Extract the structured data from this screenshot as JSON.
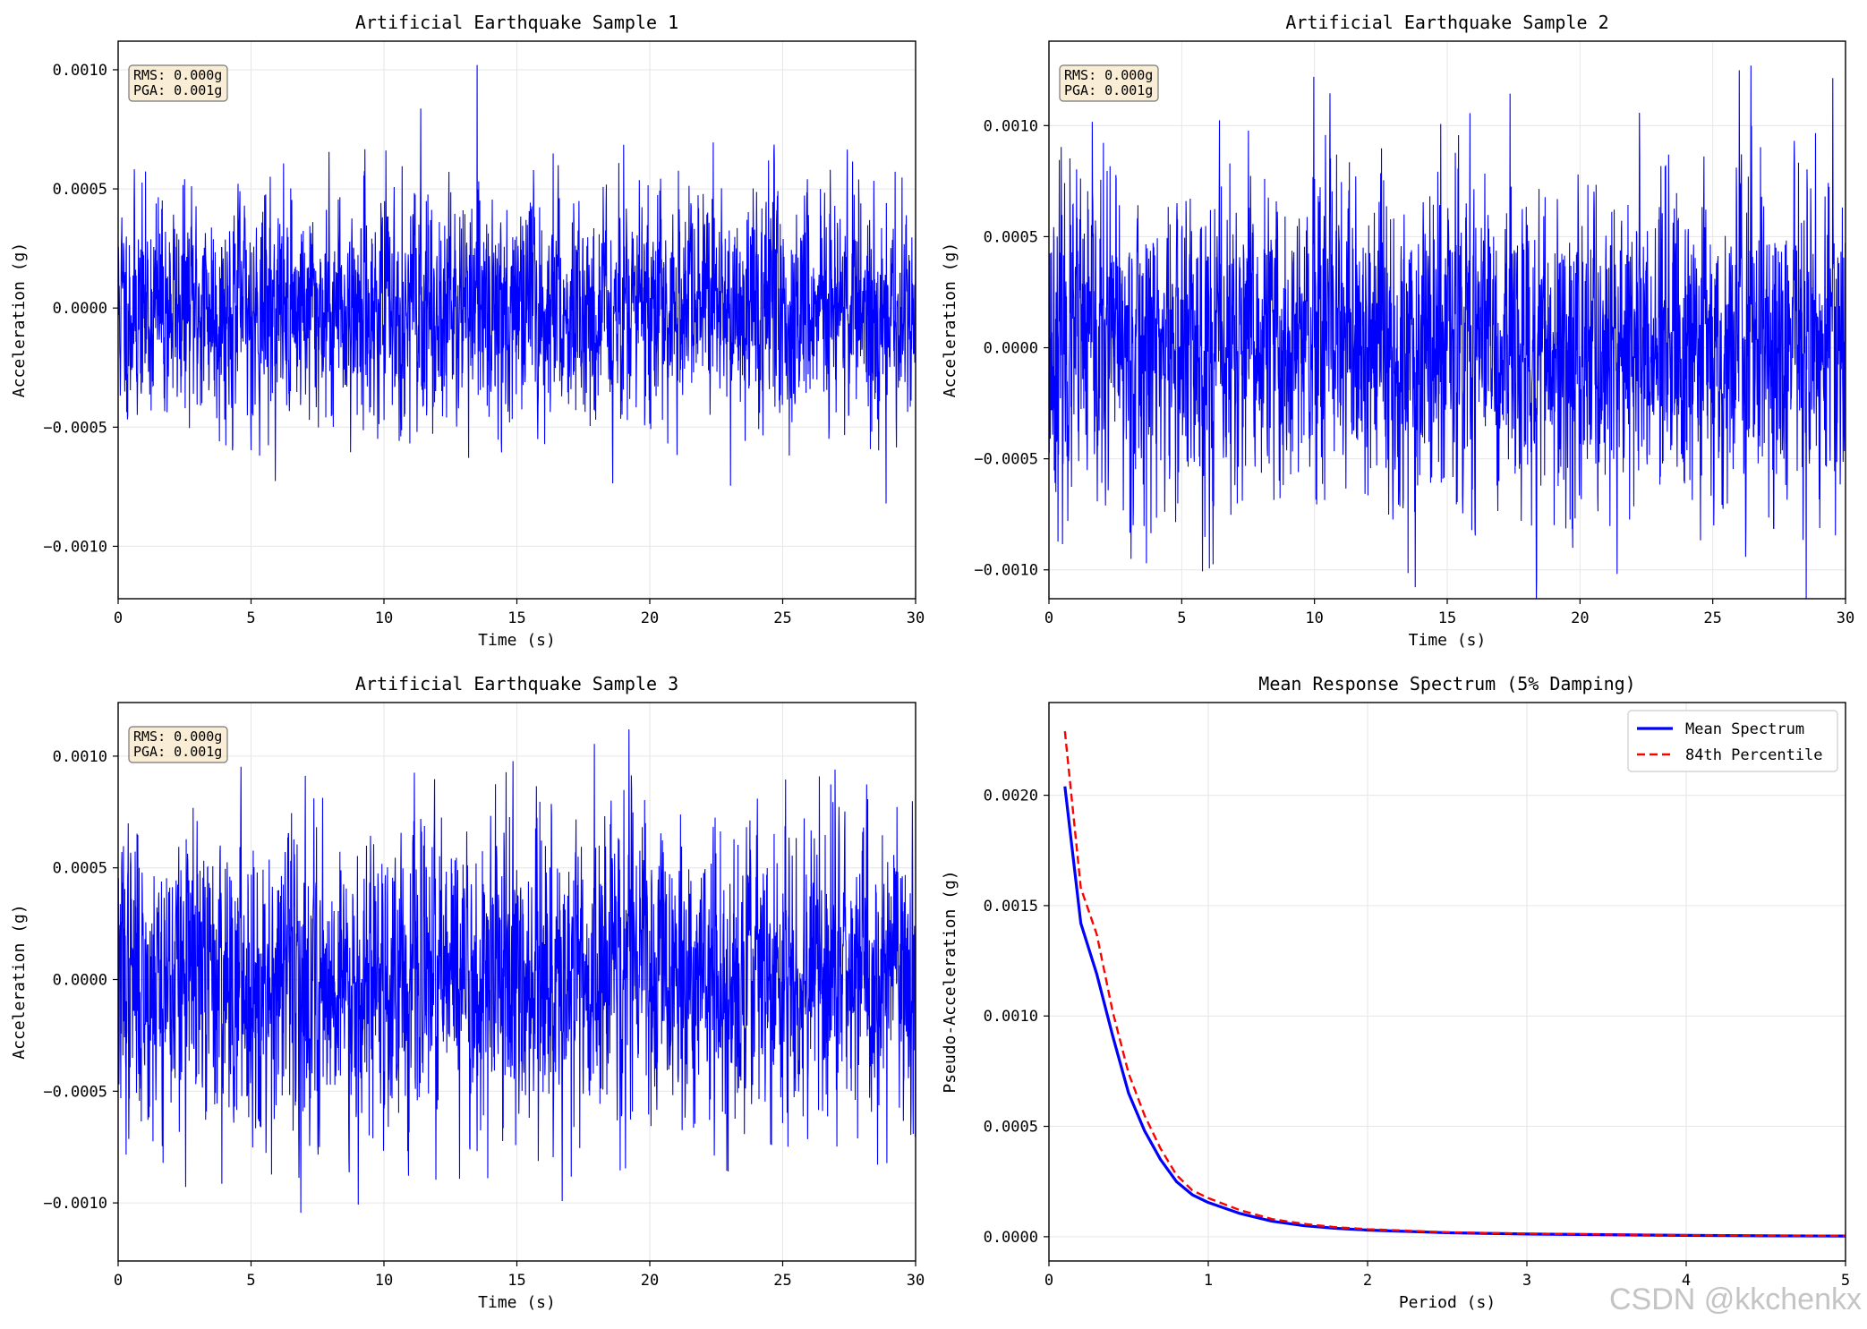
{
  "watermark": "CSDN @kkchenkx",
  "colors": {
    "signal": "#0000ff",
    "mean": "#0000ff",
    "p84": "#ff0000",
    "grid": "#e6e6e6",
    "statbox_bg": "#f5deb3"
  },
  "chart_data": [
    {
      "type": "line",
      "title": "Artificial Earthquake Sample 1",
      "xlabel": "Time (s)",
      "ylabel": "Acceleration (g)",
      "xlim": [
        0,
        30
      ],
      "ylim": [
        -0.00122,
        0.00112
      ],
      "xticks": [
        0,
        5,
        10,
        15,
        20,
        25,
        30
      ],
      "yticks": [
        -0.001,
        -0.0005,
        0.0,
        0.0005,
        0.001
      ],
      "ytick_labels": [
        "−0.0010",
        "−0.0005",
        "0.0000",
        "0.0005",
        "0.0010"
      ],
      "grid": true,
      "stats": {
        "rms": "RMS: 0.000g",
        "pga": "PGA: 0.001g"
      },
      "signal": {
        "seed": 11,
        "duration": 30,
        "sigma": 0.00028,
        "peak": 0.00102
      },
      "series": [
        {
          "values": []
        }
      ]
    },
    {
      "type": "line",
      "title": "Artificial Earthquake Sample 2",
      "xlabel": "Time (s)",
      "ylabel": "Acceleration (g)",
      "xlim": [
        0,
        30
      ],
      "ylim": [
        -0.00113,
        0.00138
      ],
      "xticks": [
        0,
        5,
        10,
        15,
        20,
        25,
        30
      ],
      "yticks": [
        -0.001,
        -0.0005,
        0.0,
        0.0005,
        0.001
      ],
      "ytick_labels": [
        "−0.0010",
        "−0.0005",
        "0.0000",
        "0.0005",
        "0.0010"
      ],
      "grid": true,
      "stats": {
        "rms": "RMS: 0.000g",
        "pga": "PGA: 0.001g"
      },
      "signal": {
        "seed": 23,
        "duration": 30,
        "sigma": 0.00029,
        "peak": 0.00127
      },
      "series": [
        {
          "values": []
        }
      ]
    },
    {
      "type": "line",
      "title": "Artificial Earthquake Sample 3",
      "xlabel": "Time (s)",
      "ylabel": "Acceleration (g)",
      "xlim": [
        0,
        30
      ],
      "ylim": [
        -0.00126,
        0.00124
      ],
      "xticks": [
        0,
        5,
        10,
        15,
        20,
        25,
        30
      ],
      "yticks": [
        -0.001,
        -0.0005,
        0.0,
        0.0005,
        0.001
      ],
      "ytick_labels": [
        "−0.0010",
        "−0.0005",
        "0.0000",
        "0.0005",
        "0.0010"
      ],
      "grid": true,
      "stats": {
        "rms": "RMS: 0.000g",
        "pga": "PGA: 0.001g"
      },
      "signal": {
        "seed": 37,
        "duration": 30,
        "sigma": 0.00028,
        "peak": 0.00112
      },
      "series": [
        {
          "values": []
        }
      ]
    },
    {
      "type": "line",
      "title": "Mean Response Spectrum (5% Damping)",
      "xlabel": "Period (s)",
      "ylabel": "Pseudo-Acceleration (g)",
      "xlim": [
        0,
        5
      ],
      "ylim": [
        -0.00011,
        0.00242
      ],
      "xticks": [
        0,
        1,
        2,
        3,
        4,
        5
      ],
      "yticks": [
        0.0,
        0.0005,
        0.001,
        0.0015,
        0.002
      ],
      "ytick_labels": [
        "0.0000",
        "0.0005",
        "0.0010",
        "0.0015",
        "0.0020"
      ],
      "grid": true,
      "legend": "top-right",
      "x": [
        0.1,
        0.2,
        0.3,
        0.4,
        0.5,
        0.6,
        0.7,
        0.8,
        0.9,
        1.0,
        1.2,
        1.4,
        1.6,
        1.8,
        2.0,
        2.5,
        3.0,
        3.5,
        4.0,
        4.5,
        5.0
      ],
      "series": [
        {
          "name": "Mean Spectrum",
          "style": "solid",
          "color": "#0000ff",
          "values": [
            0.00204,
            0.00142,
            0.00119,
            0.00091,
            0.00065,
            0.00048,
            0.00035,
            0.00025,
            0.00019,
            0.000155,
            0.000105,
            7e-05,
            5e-05,
            3.8e-05,
            3e-05,
            1.8e-05,
            1.2e-05,
            9e-06,
            6e-06,
            4e-06,
            3e-06
          ]
        },
        {
          "name": "84th Percentile",
          "style": "dashed",
          "color": "#ff0000",
          "values": [
            0.00229,
            0.00158,
            0.00137,
            0.00102,
            0.00074,
            0.00055,
            0.0004,
            0.00028,
            0.00021,
            0.000175,
            0.00012,
            8e-05,
            5.8e-05,
            4.3e-05,
            3.4e-05,
            2e-05,
            1.4e-05,
            1e-05,
            7e-06,
            5e-06,
            4e-06
          ]
        }
      ]
    }
  ]
}
